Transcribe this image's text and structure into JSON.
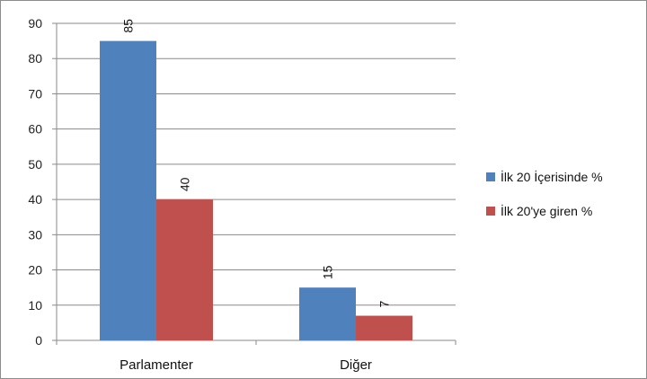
{
  "chart_data": {
    "type": "bar",
    "categories": [
      "Parlamenter",
      "Diğer"
    ],
    "series": [
      {
        "name": "İlk 20 İçerisinde %",
        "values": [
          85,
          15
        ],
        "color": "#4f81bd"
      },
      {
        "name": "İlk 20'ye giren %",
        "values": [
          40,
          7
        ],
        "color": "#c0504d"
      }
    ],
    "data_labels": [
      [
        "85",
        "15"
      ],
      [
        "40",
        "7"
      ]
    ],
    "title": "",
    "xlabel": "",
    "ylabel": "",
    "ylim": [
      0,
      90
    ],
    "yticks": [
      0,
      10,
      20,
      30,
      40,
      50,
      60,
      70,
      80,
      90
    ],
    "grid": true,
    "legend_position": "right"
  }
}
